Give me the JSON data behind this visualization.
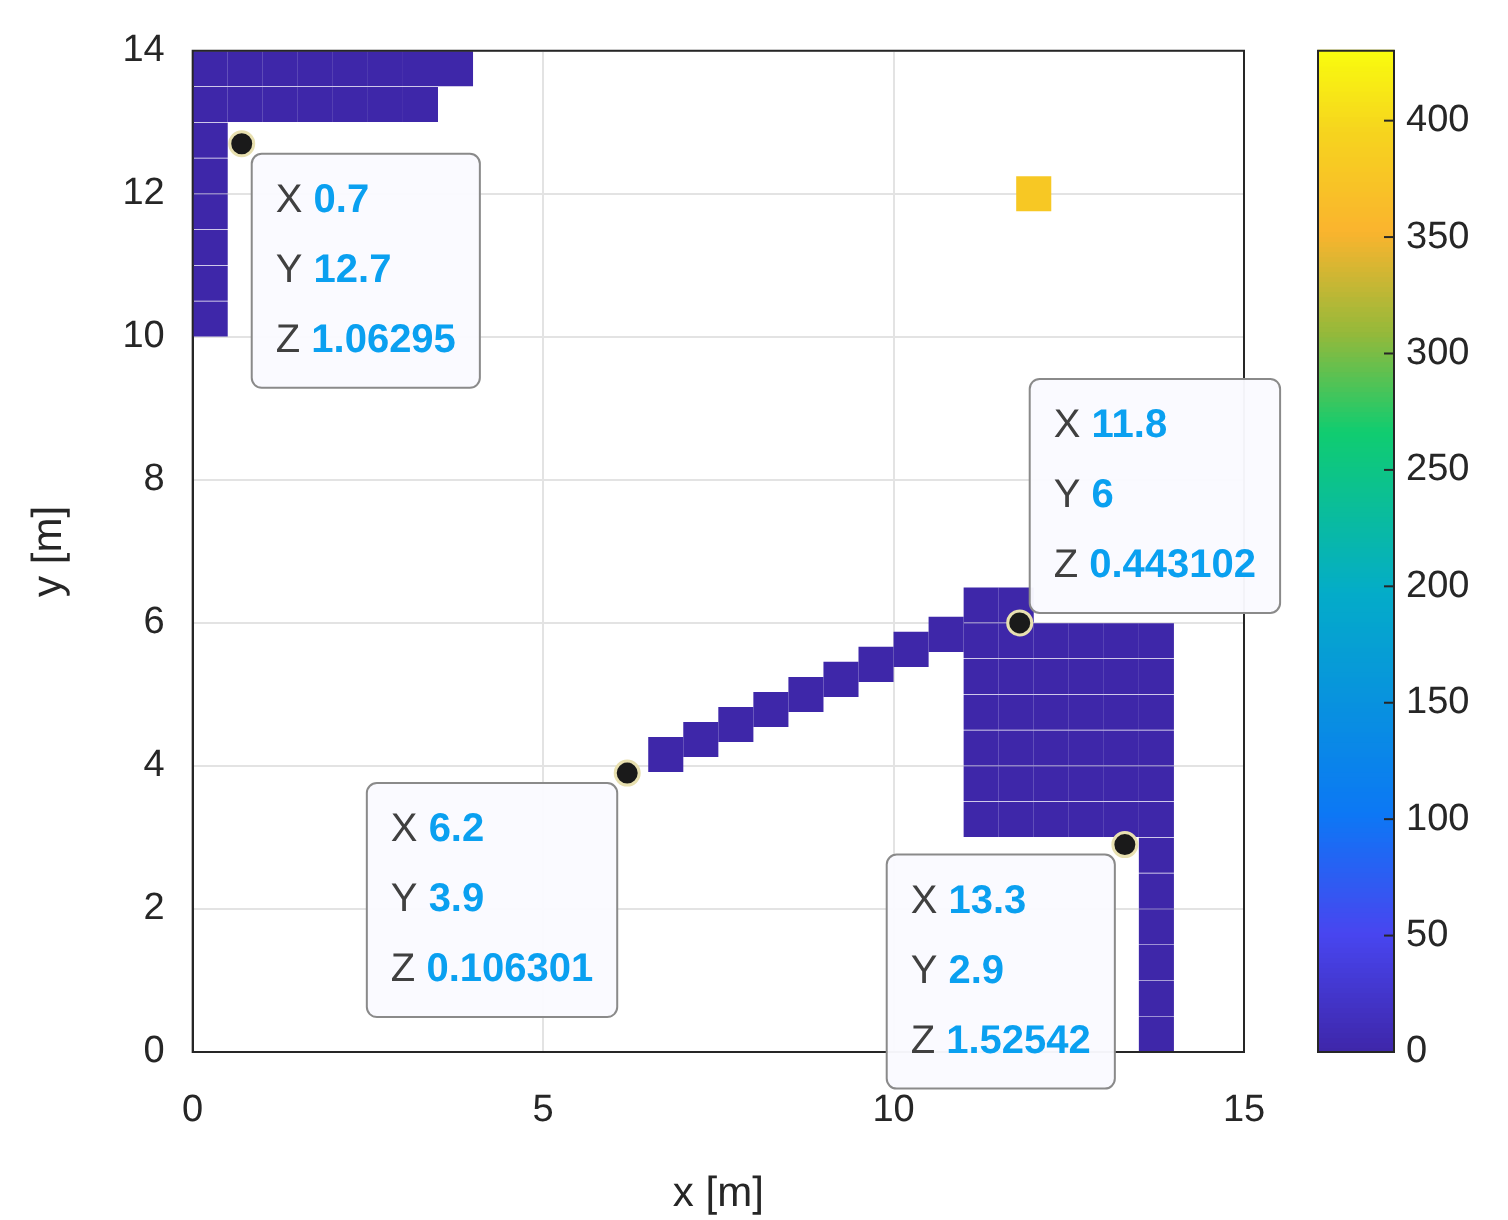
{
  "chart_data": {
    "type": "scatter",
    "xlabel": "x [m]",
    "ylabel": "y [m]",
    "xlim": [
      0,
      15
    ],
    "xticks": [
      0,
      5,
      10,
      15
    ],
    "ylim": [
      0,
      14
    ],
    "yticks": [
      0,
      2,
      4,
      6,
      8,
      10,
      12,
      14
    ],
    "grid": true,
    "marker": "square",
    "clim": [
      0,
      430
    ],
    "cticks": [
      0,
      50,
      100,
      150,
      200,
      250,
      300,
      350,
      400
    ],
    "series": [
      {
        "x": [
          0.25,
          0.25,
          0.25,
          0.25,
          0.25,
          0.25,
          0.25,
          0.75,
          1.25,
          1.75,
          2.25,
          2.75,
          3.25,
          0.25,
          0.75,
          1.25,
          1.75,
          2.25,
          2.75,
          3.25,
          3.75,
          6.75,
          7.25,
          7.75,
          8.25,
          8.75,
          9.25,
          9.75,
          10.25,
          10.75,
          11.25,
          11.25,
          11.25,
          11.25,
          11.25,
          11.25,
          11.25,
          11.75,
          11.75,
          11.75,
          11.75,
          11.75,
          11.75,
          11.75,
          12.25,
          12.25,
          12.25,
          12.25,
          12.25,
          12.25,
          12.75,
          12.75,
          12.75,
          12.75,
          12.75,
          12.75,
          13.25,
          13.25,
          13.25,
          13.25,
          13.25,
          13.25,
          13.75,
          13.75,
          13.75,
          13.75,
          13.75,
          13.75,
          13.75,
          13.75,
          13.75,
          13.75,
          13.75,
          13.75,
          12
        ],
        "values": [
          10.25,
          10.75,
          11.25,
          11.75,
          12.25,
          12.75,
          13.25,
          13.25,
          13.25,
          13.25,
          13.25,
          13.25,
          13.25,
          13.75,
          13.75,
          13.75,
          13.75,
          13.75,
          13.75,
          13.75,
          13.75,
          4.16,
          4.37,
          4.58,
          4.79,
          5.0,
          5.21,
          5.42,
          5.63,
          5.84,
          3.25,
          3.75,
          4.25,
          4.75,
          5.25,
          5.75,
          6.25,
          3.25,
          3.75,
          4.25,
          4.75,
          5.25,
          5.75,
          6.25,
          3.25,
          3.75,
          4.25,
          4.75,
          5.25,
          5.75,
          3.25,
          3.75,
          4.25,
          4.75,
          5.25,
          5.75,
          3.25,
          3.75,
          4.25,
          4.75,
          5.25,
          5.75,
          0.25,
          0.75,
          1.25,
          1.75,
          2.25,
          2.75,
          3.25,
          3.75,
          4.25,
          4.75,
          5.25,
          5.75,
          12
        ],
        "cvalues": [
          1,
          1,
          1,
          1,
          1,
          1,
          1,
          1,
          1,
          1,
          1,
          1,
          1,
          1,
          1,
          1,
          1,
          1,
          1,
          1,
          1,
          1,
          1,
          1,
          1,
          1,
          1,
          1,
          1,
          1,
          1,
          1,
          1,
          1,
          1,
          1,
          1,
          1,
          1,
          1,
          1,
          1,
          1,
          1,
          1,
          1,
          1,
          1,
          1,
          1,
          1,
          1,
          1,
          1,
          1,
          1,
          1,
          1,
          1,
          1,
          1,
          1,
          1,
          1,
          1,
          1,
          1,
          1,
          1,
          1,
          1,
          1,
          1,
          1,
          380
        ]
      }
    ],
    "annotations": [
      {
        "text": "X 0.7\nY 12.7\nZ 1.06295",
        "x": 0.7,
        "y": 12.7
      },
      {
        "text": "X 11.8\nY 6\nZ 0.443102",
        "x": 11.8,
        "y": 6
      },
      {
        "text": "X 6.2\nY 3.9\nZ 0.106301",
        "x": 6.2,
        "y": 3.9
      },
      {
        "text": "X 13.3\nY 2.9\nZ 1.52542",
        "x": 13.3,
        "y": 2.9
      }
    ]
  }
}
